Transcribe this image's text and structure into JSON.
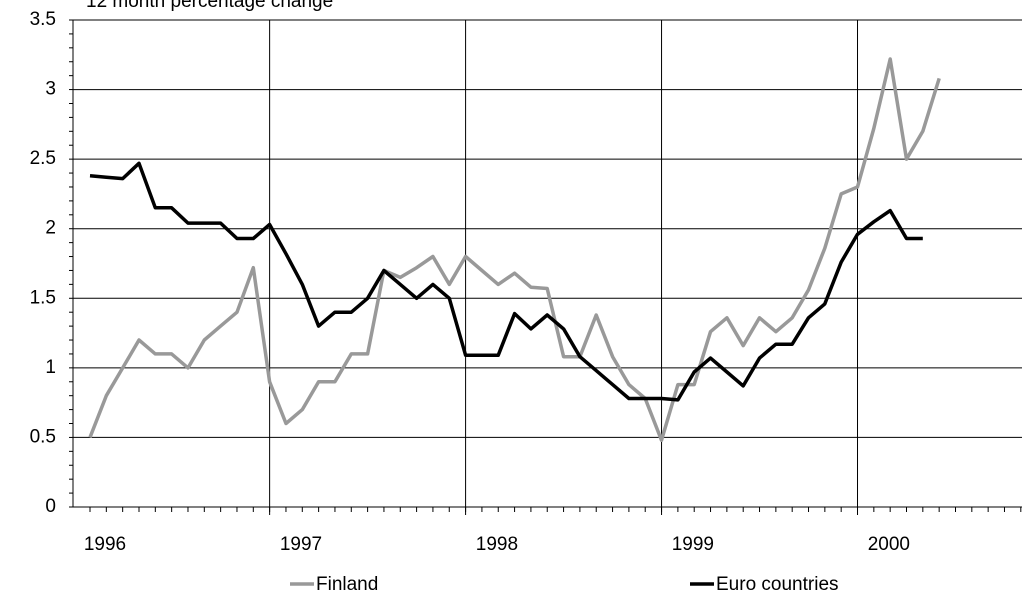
{
  "chart_data": {
    "type": "line",
    "title": "12 month percentage change",
    "categories": [
      "1996",
      null,
      null,
      null,
      null,
      null,
      null,
      null,
      null,
      null,
      null,
      null,
      "1997",
      null,
      null,
      null,
      null,
      null,
      null,
      null,
      null,
      null,
      null,
      null,
      "1998",
      null,
      null,
      null,
      null,
      null,
      null,
      null,
      null,
      null,
      null,
      null,
      "1999",
      null,
      null,
      null,
      null,
      null,
      null,
      null,
      null,
      null,
      null,
      null,
      "2000",
      null,
      null,
      null,
      null,
      null,
      null,
      null,
      null,
      null
    ],
    "series": [
      {
        "name": "Finland",
        "color": "#999999",
        "values": [
          0.5,
          0.8,
          1.0,
          1.2,
          1.1,
          1.1,
          1.0,
          1.2,
          1.3,
          1.4,
          1.72,
          0.9,
          0.6,
          0.7,
          0.9,
          0.9,
          1.1,
          1.1,
          1.7,
          1.65,
          1.72,
          1.8,
          1.6,
          1.8,
          1.7,
          1.6,
          1.68,
          1.58,
          1.57,
          1.08,
          1.08,
          1.38,
          1.08,
          0.88,
          0.78,
          0.48,
          0.88,
          0.88,
          1.26,
          1.36,
          1.16,
          1.36,
          1.26,
          1.36,
          1.56,
          1.86,
          2.25,
          2.3,
          2.72,
          3.22,
          2.5,
          2.7,
          3.08,
          null,
          null,
          null,
          null,
          null
        ]
      },
      {
        "name": "Euro countries",
        "color": "#000000",
        "values": [
          2.38,
          2.37,
          2.36,
          2.47,
          2.15,
          2.15,
          2.04,
          2.04,
          2.04,
          1.93,
          1.93,
          2.03,
          1.82,
          1.6,
          1.3,
          1.4,
          1.4,
          1.5,
          1.7,
          1.6,
          1.5,
          1.6,
          1.5,
          1.09,
          1.09,
          1.09,
          1.39,
          1.28,
          1.38,
          1.28,
          1.08,
          0.98,
          0.88,
          0.78,
          0.78,
          0.78,
          0.77,
          0.97,
          1.07,
          0.97,
          0.87,
          1.07,
          1.17,
          1.17,
          1.36,
          1.46,
          1.76,
          1.96,
          2.05,
          2.13,
          1.93,
          1.93,
          null,
          null,
          null,
          null,
          null,
          null
        ]
      }
    ],
    "ylim": [
      0,
      3.5
    ],
    "yticks": [
      0,
      0.5,
      1,
      1.5,
      2,
      2.5,
      3,
      3.5
    ],
    "grid": true,
    "legend": "bottom"
  }
}
